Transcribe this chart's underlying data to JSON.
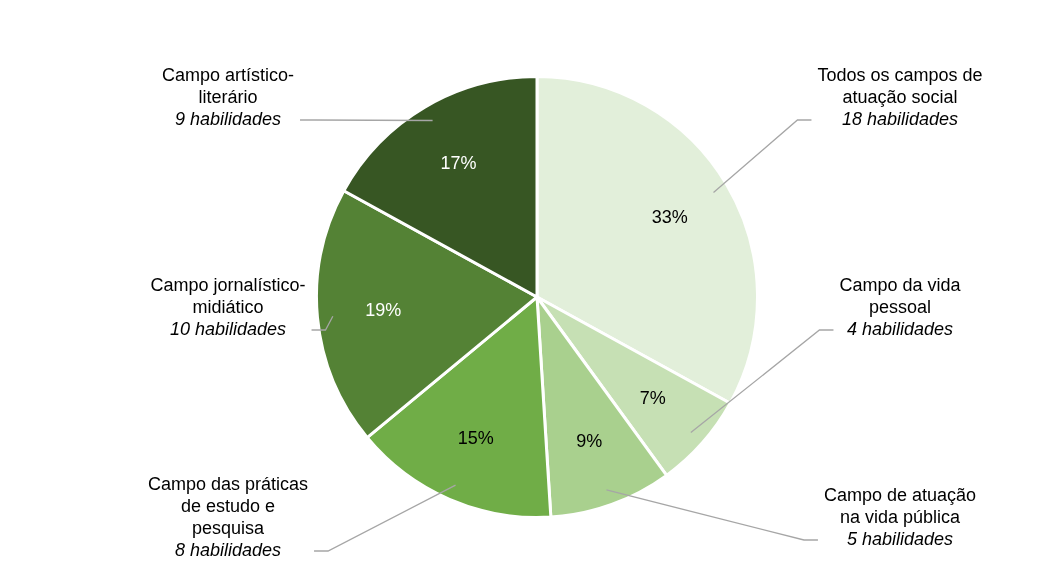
{
  "chart_data": {
    "type": "pie",
    "categories": [
      "Todos os campos de atuação social",
      "Campo da vida pessoal",
      "Campo de atuação na vida pública",
      "Campo das práticas de estudo e pesquisa",
      "Campo jornalístico-midiático",
      "Campo artístico-literário"
    ],
    "values": [
      33,
      7,
      9,
      15,
      19,
      17
    ],
    "value_labels": [
      "33%",
      "7%",
      "9%",
      "15%",
      "19%",
      "17%"
    ],
    "colors": [
      "#e2efda",
      "#c6e0b4",
      "#a9d08e",
      "#70ad47",
      "#548235",
      "#375623"
    ],
    "annotations": [
      "18 habilidades",
      "4 habilidades",
      "5 habilidades",
      "8 habilidades",
      "10 habilidades",
      "9 habilidades"
    ],
    "legend": false
  }
}
